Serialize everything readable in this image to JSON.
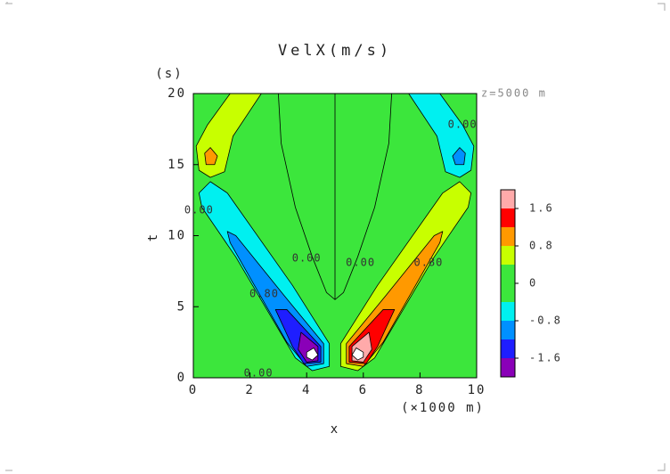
{
  "chart_data": {
    "type": "contour",
    "title": "VelX(m/s)",
    "x_label": "x",
    "x_unit": "(×1000 m)",
    "y_label": "t",
    "y_unit": "(s)",
    "annotation": "z=5000 m",
    "xlim": [
      0,
      10
    ],
    "xticks": [
      0,
      2,
      4,
      6,
      8,
      10
    ],
    "ylim": [
      0,
      20
    ],
    "yticks": [
      0,
      5,
      10,
      15,
      20
    ],
    "background_level": 0.0,
    "clim": [
      -2.0,
      2.0
    ],
    "colors": [
      "#8a00b8",
      "#1e1eff",
      "#0090ff",
      "#00f0f0",
      "#3ce63c",
      "#3ce63c",
      "#c8ff00",
      "#ff9900",
      "#ff0000",
      "#ffaaaa"
    ],
    "cticks": [
      -1.6,
      -0.8,
      0.0,
      0.8,
      1.6
    ],
    "regions": [
      {
        "level": -0.8,
        "points": [
          [
            0.2,
            13.0
          ],
          [
            0.6,
            13.8
          ],
          [
            1.2,
            13.0
          ],
          [
            3.5,
            6.5
          ],
          [
            4.8,
            2.4
          ],
          [
            4.8,
            0.8
          ],
          [
            4.2,
            0.5
          ],
          [
            3.6,
            1.4
          ],
          [
            1.5,
            8.5
          ],
          [
            0.3,
            12.0
          ]
        ]
      },
      {
        "level": -1.2,
        "points": [
          [
            1.2,
            10.3
          ],
          [
            1.5,
            10.0
          ],
          [
            3.2,
            5.8
          ],
          [
            4.6,
            2.4
          ],
          [
            4.6,
            1.0
          ],
          [
            4.0,
            0.8
          ],
          [
            3.3,
            2.5
          ],
          [
            1.3,
            9.5
          ]
        ]
      },
      {
        "level": -1.6,
        "points": [
          [
            2.9,
            4.8
          ],
          [
            3.3,
            4.8
          ],
          [
            4.5,
            2.2
          ],
          [
            4.5,
            1.1
          ],
          [
            3.9,
            1.0
          ],
          [
            3.5,
            2.2
          ]
        ]
      },
      {
        "level": -2.0,
        "points": [
          [
            3.8,
            3.2
          ],
          [
            4.4,
            2.2
          ],
          [
            4.4,
            1.2
          ],
          [
            4.0,
            1.1
          ],
          [
            3.7,
            2.0
          ]
        ]
      },
      {
        "color": "#ffffff",
        "points": [
          [
            4.0,
            1.8
          ],
          [
            4.25,
            2.1
          ],
          [
            4.4,
            1.6
          ],
          [
            4.2,
            1.25
          ],
          [
            4.0,
            1.45
          ]
        ]
      },
      {
        "level": 0.4,
        "points": [
          [
            9.8,
            13.0
          ],
          [
            9.4,
            13.8
          ],
          [
            8.8,
            13.0
          ],
          [
            6.5,
            6.5
          ],
          [
            5.2,
            2.4
          ],
          [
            5.2,
            0.8
          ],
          [
            5.8,
            0.5
          ],
          [
            6.4,
            1.4
          ],
          [
            8.5,
            8.5
          ],
          [
            9.7,
            12.0
          ]
        ]
      },
      {
        "level": 0.8,
        "points": [
          [
            8.8,
            10.3
          ],
          [
            8.5,
            10.0
          ],
          [
            6.8,
            5.8
          ],
          [
            5.4,
            2.4
          ],
          [
            5.4,
            1.0
          ],
          [
            6.0,
            0.8
          ],
          [
            6.7,
            2.5
          ],
          [
            8.7,
            9.5
          ]
        ]
      },
      {
        "level": 1.2,
        "points": [
          [
            7.1,
            4.8
          ],
          [
            6.7,
            4.8
          ],
          [
            5.5,
            2.2
          ],
          [
            5.5,
            1.1
          ],
          [
            6.1,
            1.0
          ],
          [
            6.5,
            2.2
          ]
        ]
      },
      {
        "level": 1.6,
        "points": [
          [
            6.2,
            3.2
          ],
          [
            5.6,
            2.2
          ],
          [
            5.6,
            1.2
          ],
          [
            6.0,
            1.1
          ],
          [
            6.3,
            2.0
          ]
        ]
      },
      {
        "color": "#ffffff",
        "points": [
          [
            6.0,
            1.8
          ],
          [
            5.75,
            2.1
          ],
          [
            5.6,
            1.6
          ],
          [
            5.8,
            1.25
          ],
          [
            6.0,
            1.45
          ]
        ]
      },
      {
        "level": 0.4,
        "points": [
          [
            1.3,
            20
          ],
          [
            2.4,
            20
          ],
          [
            1.4,
            17.0
          ],
          [
            1.1,
            14.5
          ],
          [
            0.6,
            14.1
          ],
          [
            0.2,
            14.6
          ],
          [
            0.1,
            16.3
          ],
          [
            0.5,
            17.8
          ]
        ]
      },
      {
        "level": 0.8,
        "points": [
          [
            0.45,
            15.0
          ],
          [
            0.75,
            15.0
          ],
          [
            0.85,
            15.6
          ],
          [
            0.6,
            16.2
          ],
          [
            0.4,
            15.8
          ]
        ]
      },
      {
        "level": -0.8,
        "points": [
          [
            8.7,
            20
          ],
          [
            7.6,
            20
          ],
          [
            8.6,
            17.0
          ],
          [
            8.9,
            14.5
          ],
          [
            9.4,
            14.1
          ],
          [
            9.8,
            14.6
          ],
          [
            9.9,
            16.3
          ],
          [
            9.5,
            17.8
          ]
        ]
      },
      {
        "level": -1.2,
        "points": [
          [
            9.55,
            15.0
          ],
          [
            9.25,
            15.0
          ],
          [
            9.15,
            15.6
          ],
          [
            9.4,
            16.2
          ],
          [
            9.6,
            15.8
          ]
        ]
      }
    ],
    "contour_lines": [
      {
        "level": 0.0,
        "points": [
          [
            3.0,
            20
          ],
          [
            3.1,
            16.5
          ],
          [
            3.6,
            12
          ],
          [
            4.2,
            8.5
          ],
          [
            4.7,
            6.0
          ],
          [
            5.0,
            5.5
          ],
          [
            5.3,
            6.0
          ],
          [
            5.8,
            8.5
          ],
          [
            6.4,
            12
          ],
          [
            6.9,
            16.5
          ],
          [
            7.0,
            20
          ]
        ]
      },
      {
        "level": 0.0,
        "points": [
          [
            5.0,
            5.5
          ],
          [
            5.0,
            20
          ]
        ]
      }
    ],
    "contour_labels": [
      {
        "text": "0.00",
        "x": 4.0,
        "y": 8.4
      },
      {
        "text": "0.00",
        "x": 5.9,
        "y": 8.1
      },
      {
        "text": "0.80",
        "x": 2.5,
        "y": 5.9
      },
      {
        "text": "0.80",
        "x": 8.3,
        "y": 8.1
      },
      {
        "text": "0.00",
        "x": 9.5,
        "y": 17.8
      },
      {
        "text": "0.00",
        "x": 0.2,
        "y": 11.8
      },
      {
        "text": "0.00",
        "x": 2.3,
        "y": 0.3
      }
    ]
  }
}
